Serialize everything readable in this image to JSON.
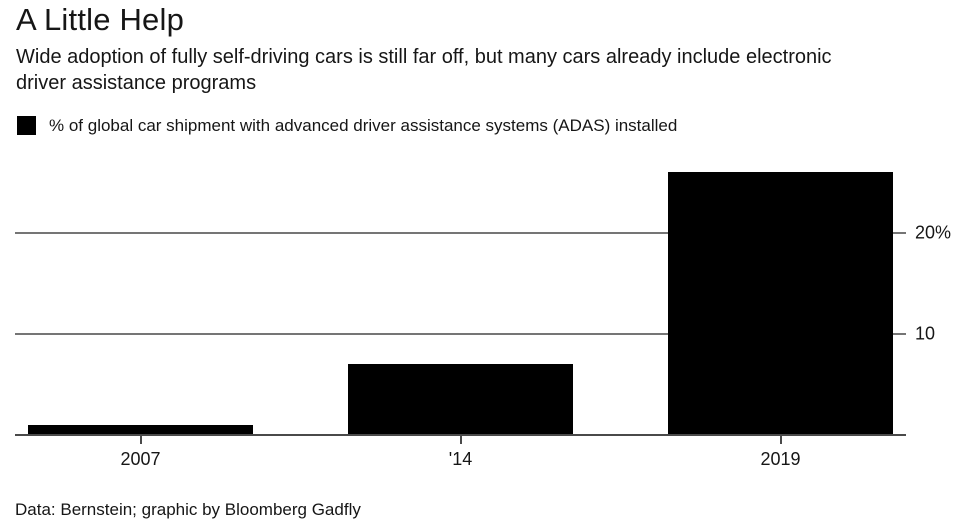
{
  "header": {
    "title": "A Little Help",
    "subtitle": "Wide adoption of fully self-driving cars is still far off, but many cars already include electronic driver assistance programs"
  },
  "legend": {
    "label": "% of global car shipment with advanced driver assistance systems (ADAS) installed",
    "swatch_color": "#000000"
  },
  "footer": {
    "source": "Data: Bernstein; graphic by Bloomberg Gadfly"
  },
  "chart_data": {
    "type": "bar",
    "title": "A Little Help",
    "categories": [
      "2007",
      "'14",
      "2019"
    ],
    "values": [
      1,
      7,
      26
    ],
    "series_name": "% of global car shipment with advanced driver assistance systems (ADAS) installed",
    "xlabel": "",
    "ylabel": "",
    "ylim": [
      0,
      26.5
    ],
    "yticks": [
      {
        "value": 10,
        "label": "10"
      },
      {
        "value": 20,
        "label": "20%"
      }
    ],
    "grid": "horizontal",
    "axis_labels_side": "right",
    "legend_position": "top-left",
    "bar_color": "#000000",
    "gridline_color": "#757575",
    "text_color": "#161616"
  }
}
